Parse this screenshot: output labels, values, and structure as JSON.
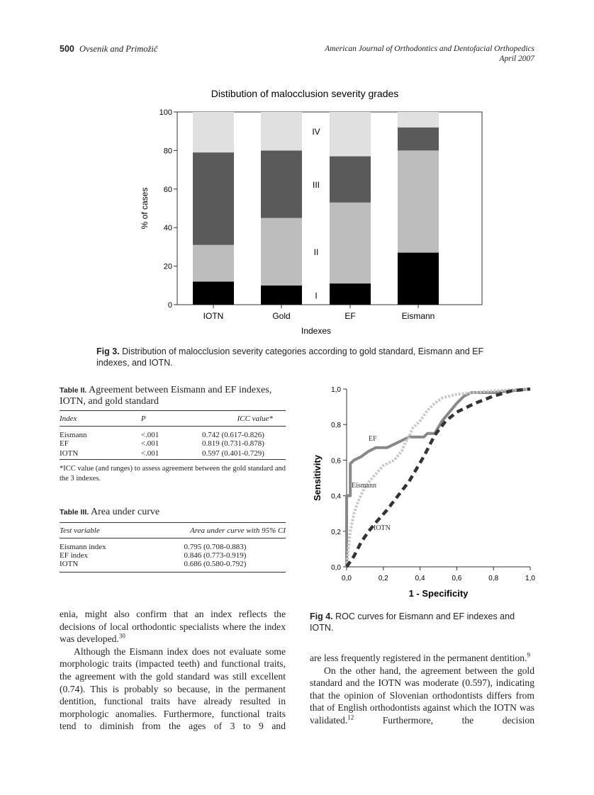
{
  "header": {
    "page_number": "500",
    "authors": "Ovsenik and Primožič",
    "journal": "American Journal of Orthodontics and Dentofacial Orthopedics",
    "date": "April 2007"
  },
  "chart_data": [
    {
      "type": "stacked-bar",
      "title": "Distibution of malocclusion severity grades",
      "y_label": "% of cases",
      "x_label": "Indexes",
      "categories": [
        "IOTN",
        "Gold",
        "EF",
        "Eismann"
      ],
      "series": [
        {
          "name": "I",
          "color": "#000000",
          "values": [
            12,
            10,
            11,
            27
          ]
        },
        {
          "name": "II",
          "color": "#bdbdbd",
          "values": [
            19,
            35,
            42,
            53
          ]
        },
        {
          "name": "III",
          "color": "#5a5a5a",
          "values": [
            48,
            35,
            24,
            12
          ]
        },
        {
          "name": "IV",
          "color": "#e0e0e0",
          "values": [
            21,
            20,
            23,
            8
          ]
        }
      ],
      "ylim": [
        0,
        100
      ],
      "yticks": [
        0,
        20,
        40,
        60,
        80,
        100
      ]
    },
    {
      "type": "line",
      "x_label": "1 - Specificity",
      "y_label": "Sensitivity",
      "xlim": [
        0,
        1
      ],
      "ylim": [
        0,
        1
      ],
      "xticks": [
        {
          "value": 0,
          "label": "0,0"
        },
        {
          "value": 0.2,
          "label": "0,2"
        },
        {
          "value": 0.4,
          "label": "0,4"
        },
        {
          "value": 0.6,
          "label": "0,6"
        },
        {
          "value": 0.8,
          "label": "0,8"
        },
        {
          "value": 1,
          "label": "1,0"
        }
      ],
      "yticks": [
        {
          "value": 0,
          "label": "0,0"
        },
        {
          "value": 0.2,
          "label": "0,2"
        },
        {
          "value": 0.4,
          "label": "0,4"
        },
        {
          "value": 0.6,
          "label": "0,6"
        },
        {
          "value": 0.8,
          "label": "0,8"
        },
        {
          "value": 1,
          "label": "1,0"
        }
      ],
      "series": [
        {
          "name": "EF",
          "color": "#888888",
          "x": [
            0,
            0,
            0.02,
            0.02,
            0.04,
            0.08,
            0.12,
            0.16,
            0.22,
            0.28,
            0.34,
            0.42,
            0.44,
            0.48,
            0.52,
            0.6,
            0.64,
            0.68,
            0.8,
            0.9,
            1
          ],
          "values": [
            0,
            0.4,
            0.4,
            0.58,
            0.6,
            0.62,
            0.65,
            0.67,
            0.67,
            0.7,
            0.73,
            0.73,
            0.75,
            0.75,
            0.82,
            0.92,
            0.96,
            0.98,
            0.98,
            0.99,
            1
          ]
        },
        {
          "name": "Eismann",
          "color": "#c8c8c8",
          "x": [
            0,
            0.02,
            0.04,
            0.06,
            0.1,
            0.14,
            0.2,
            0.26,
            0.3,
            0.32,
            0.34,
            0.36,
            0.4,
            0.44,
            0.48,
            0.52,
            0.6,
            0.7,
            0.8,
            1
          ],
          "values": [
            0,
            0.2,
            0.3,
            0.36,
            0.45,
            0.5,
            0.57,
            0.6,
            0.65,
            0.7,
            0.73,
            0.78,
            0.82,
            0.88,
            0.92,
            0.95,
            0.97,
            0.98,
            0.99,
            1
          ]
        },
        {
          "name": "IOTN",
          "color": "#333333",
          "x": [
            0,
            0.04,
            0.08,
            0.12,
            0.16,
            0.22,
            0.28,
            0.34,
            0.42,
            0.48,
            0.54,
            0.6,
            0.7,
            0.8,
            0.9,
            1
          ],
          "values": [
            0,
            0.06,
            0.14,
            0.2,
            0.25,
            0.32,
            0.4,
            0.48,
            0.62,
            0.74,
            0.82,
            0.87,
            0.92,
            0.96,
            0.99,
            1
          ]
        }
      ]
    }
  ],
  "figure_captions": [
    {
      "label": "Fig 3.",
      "text": "Distribution of malocclusion severity categories according to gold standard, Eismann and EF indexes, and IOTN."
    },
    {
      "label": "Fig 4.",
      "text": "ROC curves for Eismann and EF indexes and IOTN."
    }
  ],
  "tables": [
    {
      "label": "Table II.",
      "title": "Agreement between Eismann and EF indexes, IOTN, and gold standard",
      "columns": [
        "Index",
        "P",
        "ICC value*"
      ],
      "rows": [
        [
          "Eismann",
          "<.001",
          "0.742 (0.617-0.826)"
        ],
        [
          "EF",
          "<.001",
          "0.819 (0.731-0.878)"
        ],
        [
          "IOTN",
          "<.001",
          "0.597 (0.401-0.729)"
        ]
      ],
      "footnote": "*ICC value (and ranges) to assess agreement between the gold standard and the 3 indexes."
    },
    {
      "label": "Table III.",
      "title": "Area under curve",
      "columns": [
        "Test variable",
        "Area under curve with 95% CI"
      ],
      "rows": [
        [
          "Eismann index",
          "0.795 (0.708-0.883)"
        ],
        [
          "EF index",
          "0.846 (0.773-0.919)"
        ],
        [
          "IOTN",
          "0.686 (0.580-0.792)"
        ]
      ]
    }
  ],
  "body": {
    "left": [
      {
        "text": "enia, might also confirm that an index reflects the decisions of local orthodontic specialists where the index was developed.",
        "ref": "30"
      },
      {
        "text": "Although the Eismann index does not evaluate some morphologic traits (impacted teeth) and functional traits, the agreement with the gold standard was still excellent (0.74). This is probably so because, in the permanent dentition, functional traits have already resulted in morphologic anomalies. Furthermore, functional traits tend to diminish from the ages of 3 to 9 and"
      }
    ],
    "right": [
      {
        "text": "are less frequently registered in the permanent dentition.",
        "ref": "9"
      },
      {
        "text": "On the other hand, the agreement between the gold standard and the IOTN was moderate (0.597), indicating that the opinion of Slovenian orthodontists differs from that of English orthodontists against which the IOTN was validated.",
        "ref": "12",
        "after": " Furthermore, the decision"
      }
    ]
  }
}
